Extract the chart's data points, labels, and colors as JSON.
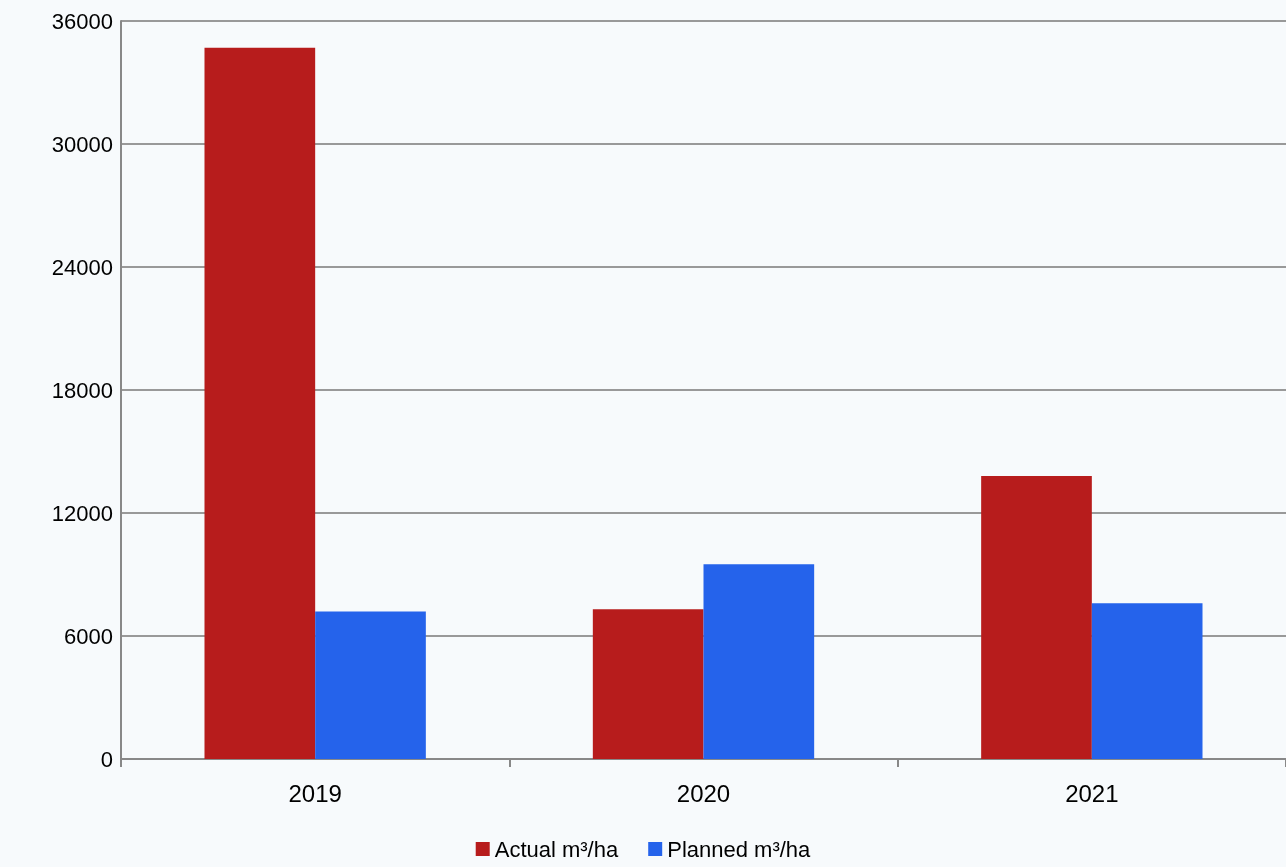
{
  "chart_data": {
    "type": "bar",
    "categories": [
      "2019",
      "2020",
      "2021"
    ],
    "series": [
      {
        "name": "Actual m³/ha",
        "color": "#b71c1c",
        "values": [
          34700,
          7300,
          13800
        ]
      },
      {
        "name": "Planned m³/ha",
        "color": "#2563eb",
        "values": [
          7200,
          9500,
          7600
        ]
      }
    ],
    "ylim": [
      0,
      36000
    ],
    "yticks": [
      0,
      6000,
      12000,
      18000,
      24000,
      30000,
      36000
    ],
    "grid": "y",
    "legend": "bottom"
  }
}
